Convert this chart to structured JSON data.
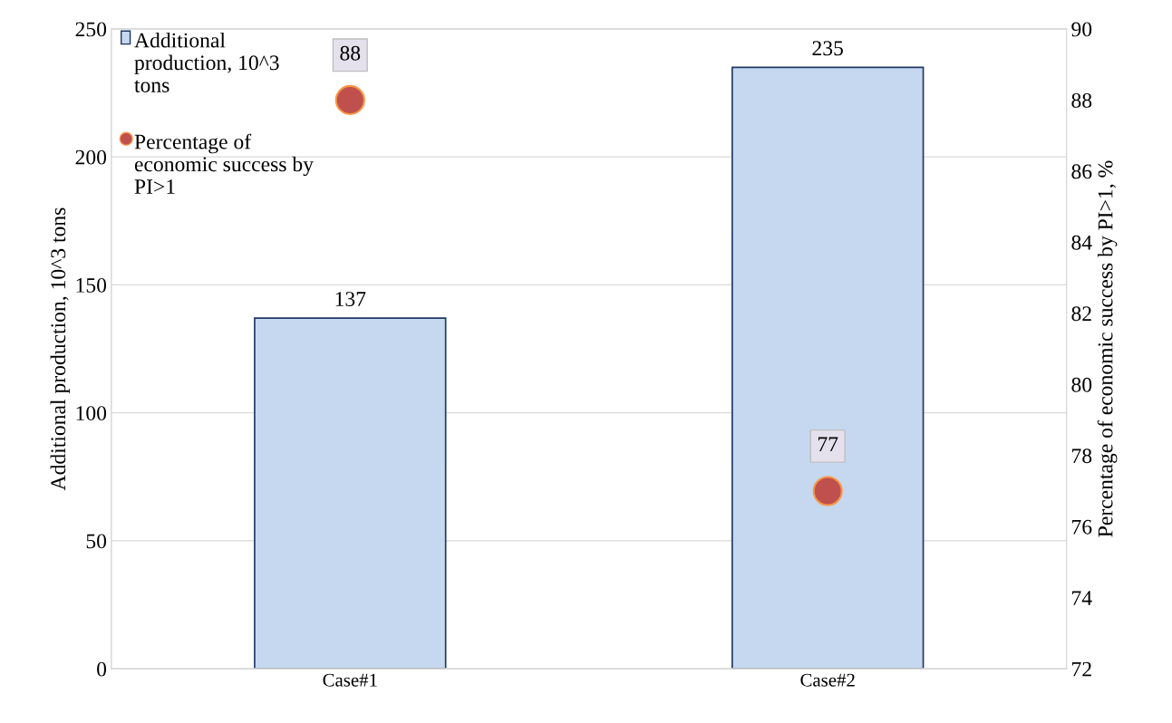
{
  "chart_data": {
    "type": "bar",
    "categories": [
      "Case#1",
      "Case#2"
    ],
    "ylabel": "Additional production, 10^3 tons",
    "y2label": "Percentage of economic success by PI>1, %",
    "ylim": [
      0,
      250
    ],
    "yticks": [
      0,
      50,
      100,
      150,
      200,
      250
    ],
    "y2lim": [
      72,
      90
    ],
    "y2ticks": [
      72,
      74,
      76,
      78,
      80,
      82,
      84,
      86,
      88,
      90
    ],
    "grid": "y",
    "legend": "top left",
    "data_labels": true,
    "series": [
      {
        "name": "Additional production, 10^3 tons",
        "type": "bar",
        "color": "#c5d8f0",
        "values": [
          137,
          235
        ]
      },
      {
        "name": "Percentage of economic success by PI>1",
        "type": "scatter",
        "axis": "y2",
        "marker": "circle",
        "color": "#c0504d",
        "values": [
          88,
          77
        ]
      }
    ]
  }
}
